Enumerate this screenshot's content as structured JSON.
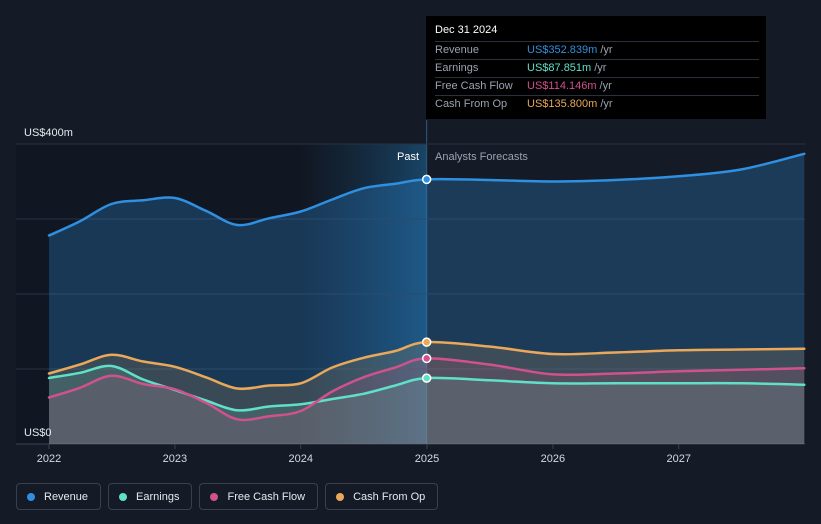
{
  "chart_data": {
    "type": "area",
    "y_axis": {
      "top_label": "US$400m",
      "bottom_label": "US$0",
      "ylim": [
        0,
        400
      ]
    },
    "x_ticks": [
      "2022",
      "2023",
      "2024",
      "2025",
      "2026",
      "2027"
    ],
    "section_labels": {
      "past": "Past",
      "forecast": "Analysts Forecasts"
    },
    "highlight_date": "2024-12-31",
    "series": [
      {
        "name": "Revenue",
        "color": "#2f8fe0",
        "points": [
          [
            "2022-01-01",
            278
          ],
          [
            "2022-04-01",
            297
          ],
          [
            "2022-07-01",
            320
          ],
          [
            "2022-10-01",
            325
          ],
          [
            "2023-01-01",
            328
          ],
          [
            "2023-04-01",
            311
          ],
          [
            "2023-07-01",
            292
          ],
          [
            "2023-10-01",
            301
          ],
          [
            "2024-01-01",
            310
          ],
          [
            "2024-04-01",
            326
          ],
          [
            "2024-07-01",
            341
          ],
          [
            "2024-10-01",
            347
          ],
          [
            "2024-12-31",
            352.839
          ],
          [
            "2025-06-30",
            352
          ],
          [
            "2025-12-31",
            350
          ],
          [
            "2026-06-30",
            352
          ],
          [
            "2026-12-31",
            357
          ],
          [
            "2027-06-30",
            366
          ],
          [
            "2027-12-31",
            387
          ]
        ]
      },
      {
        "name": "Earnings",
        "color": "#5fe0c7",
        "points": [
          [
            "2022-01-01",
            88
          ],
          [
            "2022-04-01",
            95
          ],
          [
            "2022-07-01",
            104
          ],
          [
            "2022-10-01",
            86
          ],
          [
            "2023-01-01",
            72
          ],
          [
            "2023-04-01",
            58
          ],
          [
            "2023-07-01",
            45
          ],
          [
            "2023-10-01",
            50
          ],
          [
            "2024-01-01",
            53
          ],
          [
            "2024-04-01",
            60
          ],
          [
            "2024-07-01",
            67
          ],
          [
            "2024-10-01",
            78
          ],
          [
            "2024-12-31",
            87.851
          ],
          [
            "2025-06-30",
            85
          ],
          [
            "2025-12-31",
            81
          ],
          [
            "2026-06-30",
            81
          ],
          [
            "2026-12-31",
            81
          ],
          [
            "2027-06-30",
            81
          ],
          [
            "2027-12-31",
            79
          ]
        ]
      },
      {
        "name": "Free Cash Flow",
        "color": "#d0528c",
        "points": [
          [
            "2022-01-01",
            62
          ],
          [
            "2022-04-01",
            75
          ],
          [
            "2022-07-01",
            91
          ],
          [
            "2022-10-01",
            80
          ],
          [
            "2023-01-01",
            73
          ],
          [
            "2023-04-01",
            55
          ],
          [
            "2023-07-01",
            33
          ],
          [
            "2023-10-01",
            37
          ],
          [
            "2024-01-01",
            44
          ],
          [
            "2024-04-01",
            70
          ],
          [
            "2024-07-01",
            89
          ],
          [
            "2024-10-01",
            102
          ],
          [
            "2024-12-31",
            114.146
          ],
          [
            "2025-06-30",
            106
          ],
          [
            "2025-12-31",
            93
          ],
          [
            "2026-06-30",
            94
          ],
          [
            "2026-12-31",
            97
          ],
          [
            "2027-06-30",
            99
          ],
          [
            "2027-12-31",
            101
          ]
        ]
      },
      {
        "name": "Cash From Op",
        "color": "#e9a85a",
        "points": [
          [
            "2022-01-01",
            94
          ],
          [
            "2022-04-01",
            106
          ],
          [
            "2022-07-01",
            119
          ],
          [
            "2022-10-01",
            110
          ],
          [
            "2023-01-01",
            103
          ],
          [
            "2023-04-01",
            89
          ],
          [
            "2023-07-01",
            74
          ],
          [
            "2023-10-01",
            78
          ],
          [
            "2024-01-01",
            81
          ],
          [
            "2024-04-01",
            102
          ],
          [
            "2024-07-01",
            115
          ],
          [
            "2024-10-01",
            124
          ],
          [
            "2024-12-31",
            135.8
          ],
          [
            "2025-06-30",
            130
          ],
          [
            "2025-12-31",
            120
          ],
          [
            "2026-06-30",
            122
          ],
          [
            "2026-12-31",
            125
          ],
          [
            "2027-06-30",
            126
          ],
          [
            "2027-12-31",
            127
          ]
        ]
      }
    ]
  },
  "tooltip": {
    "date": "Dec 31 2024",
    "rows": [
      {
        "name": "Revenue",
        "value": "US$352.839m",
        "unit": "/yr",
        "color": "#2f8fe0"
      },
      {
        "name": "Earnings",
        "value": "US$87.851m",
        "unit": "/yr",
        "color": "#5fe0c7"
      },
      {
        "name": "Free Cash Flow",
        "value": "US$114.146m",
        "unit": "/yr",
        "color": "#d0528c"
      },
      {
        "name": "Cash From Op",
        "value": "US$135.800m",
        "unit": "/yr",
        "color": "#e9a85a"
      }
    ]
  },
  "legend": [
    {
      "label": "Revenue",
      "color": "#2f8fe0"
    },
    {
      "label": "Earnings",
      "color": "#5fe0c7"
    },
    {
      "label": "Free Cash Flow",
      "color": "#d0528c"
    },
    {
      "label": "Cash From Op",
      "color": "#e9a85a"
    }
  ]
}
